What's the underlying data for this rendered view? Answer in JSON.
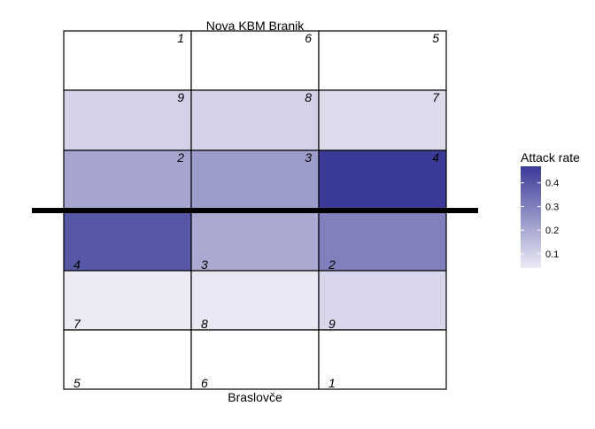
{
  "chart_data": {
    "type": "heatmap",
    "title": "",
    "xlabel": "",
    "ylabel": "",
    "teams": {
      "top": "Nova KBM Branik",
      "bottom": "Braslovče"
    },
    "zones": [
      {
        "team": "top",
        "zone": "1",
        "row": 0,
        "col": 0,
        "attack_rate": null
      },
      {
        "team": "top",
        "zone": "6",
        "row": 0,
        "col": 1,
        "attack_rate": null
      },
      {
        "team": "top",
        "zone": "5",
        "row": 0,
        "col": 2,
        "attack_rate": null
      },
      {
        "team": "top",
        "zone": "9",
        "row": 1,
        "col": 0,
        "attack_rate": 0.1
      },
      {
        "team": "top",
        "zone": "8",
        "row": 1,
        "col": 1,
        "attack_rate": 0.1
      },
      {
        "team": "top",
        "zone": "7",
        "row": 1,
        "col": 2,
        "attack_rate": 0.08
      },
      {
        "team": "top",
        "zone": "2",
        "row": 2,
        "col": 0,
        "attack_rate": 0.21
      },
      {
        "team": "top",
        "zone": "3",
        "row": 2,
        "col": 1,
        "attack_rate": 0.23
      },
      {
        "team": "top",
        "zone": "4",
        "row": 2,
        "col": 2,
        "attack_rate": 0.47
      },
      {
        "team": "bottom",
        "zone": "4",
        "row": 3,
        "col": 0,
        "attack_rate": 0.4
      },
      {
        "team": "bottom",
        "zone": "3",
        "row": 3,
        "col": 1,
        "attack_rate": 0.2
      },
      {
        "team": "bottom",
        "zone": "2",
        "row": 3,
        "col": 2,
        "attack_rate": 0.3
      },
      {
        "team": "bottom",
        "zone": "7",
        "row": 4,
        "col": 0,
        "attack_rate": 0.04
      },
      {
        "team": "bottom",
        "zone": "8",
        "row": 4,
        "col": 1,
        "attack_rate": 0.05
      },
      {
        "team": "bottom",
        "zone": "9",
        "row": 4,
        "col": 2,
        "attack_rate": 0.09
      },
      {
        "team": "bottom",
        "zone": "5",
        "row": 5,
        "col": 0,
        "attack_rate": null
      },
      {
        "team": "bottom",
        "zone": "6",
        "row": 5,
        "col": 1,
        "attack_rate": null
      },
      {
        "team": "bottom",
        "zone": "1",
        "row": 5,
        "col": 2,
        "attack_rate": null
      }
    ],
    "legend": {
      "title": "Attack rate",
      "ticks": [
        0.1,
        0.2,
        0.3,
        0.4
      ],
      "range": [
        0.04,
        0.47
      ],
      "low_color": "#ecebf5",
      "high_color": "#3a3a98",
      "placement": "right"
    },
    "net_line": true,
    "grid": false
  }
}
